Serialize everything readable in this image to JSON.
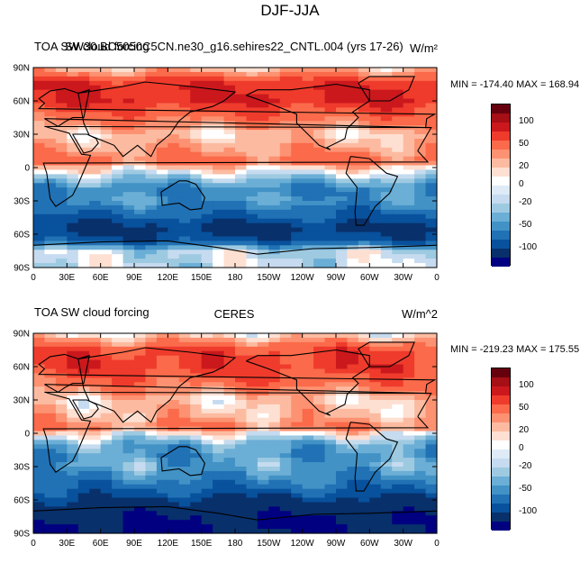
{
  "figure": {
    "title": "DJF-JJA"
  },
  "axes": {
    "x_ticks": [
      "0",
      "30E",
      "60E",
      "90E",
      "120E",
      "150E",
      "180",
      "150W",
      "120W",
      "90W",
      "60W",
      "30W",
      "0"
    ],
    "y_ticks": [
      "90N",
      "60N",
      "30N",
      "0",
      "30S",
      "60S",
      "90S"
    ]
  },
  "panels": [
    {
      "title_left": "TOA SW cloud forcing",
      "title_center": "SW30.BC5050C5CN.ne30_g16.sehires22_CNTL.004 (yrs 17-26)",
      "title_right": "W/m²",
      "minmax": "MIN = -174.40 MAX = 168.94"
    },
    {
      "title_left": "TOA SW cloud forcing",
      "title_center": "CERES",
      "title_right": "W/m^2",
      "minmax": "MIN = -219.23 MAX = 175.55"
    }
  ],
  "colorbar": {
    "labels": [
      "100",
      "50",
      "20",
      "0",
      "-20",
      "-50",
      "-100"
    ],
    "colors": [
      "#67000d",
      "#a50f15",
      "#cb181d",
      "#ef3b2c",
      "#fb6a4a",
      "#fc9272",
      "#fcbba1",
      "#fee0d2",
      "#ffffff",
      "#deebf7",
      "#c6dbef",
      "#9ecae1",
      "#6baed6",
      "#4292c6",
      "#2171b5",
      "#08519c",
      "#08306b",
      "#000080"
    ]
  },
  "chart_data": [
    {
      "type": "heatmap",
      "title": "TOA SW cloud forcing",
      "subtitle": "SW30.BC5050C5CN.ne30_g16.sehires22_CNTL.004 (yrs 17-26)",
      "units": "W/m²",
      "x_ticks": [
        "0",
        "30E",
        "60E",
        "90E",
        "120E",
        "150E",
        "180",
        "150W",
        "120W",
        "90W",
        "60W",
        "30W",
        "0"
      ],
      "y_ticks": [
        "90N",
        "60N",
        "30N",
        "0",
        "30S",
        "60S",
        "90S"
      ],
      "xlim": [
        0,
        360
      ],
      "ylim": [
        -90,
        90
      ],
      "min": -174.4,
      "max": 168.94,
      "contour_levels": [
        -100,
        -50,
        -20,
        0,
        20,
        50,
        100
      ],
      "zonal_pattern": {
        "lat": [
          90,
          75,
          60,
          45,
          30,
          15,
          5,
          0,
          -10,
          -20,
          -30,
          -45,
          -55,
          -65,
          -75,
          -90
        ],
        "value": [
          20,
          100,
          100,
          60,
          20,
          40,
          60,
          20,
          -20,
          -50,
          -40,
          -80,
          -110,
          -90,
          -5,
          -5
        ]
      }
    },
    {
      "type": "heatmap",
      "title": "TOA SW cloud forcing",
      "subtitle": "CERES",
      "units": "W/m^2",
      "x_ticks": [
        "0",
        "30E",
        "60E",
        "90E",
        "120E",
        "150E",
        "180",
        "150W",
        "120W",
        "90W",
        "60W",
        "30W",
        "0"
      ],
      "y_ticks": [
        "90N",
        "60N",
        "30N",
        "0",
        "30S",
        "60S",
        "90S"
      ],
      "xlim": [
        0,
        360
      ],
      "ylim": [
        -90,
        90
      ],
      "min": -219.23,
      "max": 175.55,
      "contour_levels": [
        -100,
        -50,
        -20,
        0,
        20,
        50,
        100
      ],
      "zonal_pattern": {
        "lat": [
          90,
          75,
          60,
          45,
          30,
          15,
          5,
          0,
          -10,
          -20,
          -30,
          -45,
          -55,
          -65,
          -75,
          -90
        ],
        "value": [
          10,
          80,
          90,
          60,
          20,
          30,
          50,
          10,
          -30,
          -40,
          -30,
          -60,
          -90,
          -120,
          -150,
          -150
        ]
      }
    }
  ]
}
